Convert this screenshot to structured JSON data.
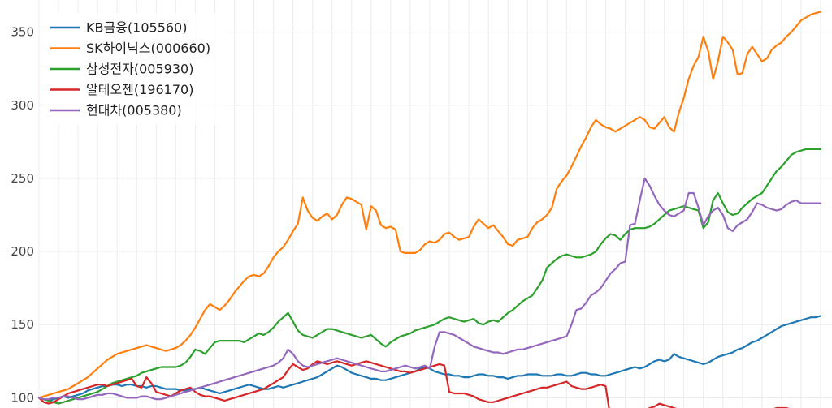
{
  "chart_data": {
    "type": "line",
    "title": "",
    "xlabel": "",
    "ylabel": "",
    "ylim": [
      93,
      372
    ],
    "yticks": [
      100,
      150,
      200,
      250,
      300,
      350
    ],
    "grid": true,
    "legend_position": "top-left",
    "x": [
      0,
      1,
      2,
      3,
      4,
      5,
      6,
      7,
      8,
      9,
      10,
      11,
      12,
      13,
      14,
      15,
      16,
      17,
      18,
      19,
      20,
      21,
      22,
      23,
      24,
      25,
      26,
      27,
      28,
      29,
      30,
      31,
      32,
      33,
      34,
      35,
      36,
      37,
      38,
      39,
      40,
      41,
      42,
      43,
      44,
      45,
      46,
      47,
      48,
      49,
      50,
      51,
      52,
      53,
      54,
      55,
      56,
      57,
      58,
      59,
      60,
      61,
      62,
      63,
      64,
      65,
      66,
      67,
      68,
      69,
      70,
      71,
      72,
      73,
      74,
      75,
      76,
      77,
      78,
      79,
      80,
      81,
      82,
      83,
      84,
      85,
      86,
      87,
      88,
      89,
      90,
      91,
      92,
      93,
      94,
      95,
      96,
      97,
      98,
      99,
      100,
      101,
      102,
      103,
      104,
      105,
      106,
      107,
      108,
      109,
      110,
      111,
      112,
      113,
      114,
      115,
      116,
      117,
      118,
      119,
      120,
      121,
      122,
      123,
      124,
      125,
      126,
      127,
      128,
      129,
      130,
      131,
      132,
      133,
      134,
      135,
      136,
      137,
      138,
      139,
      140,
      141,
      142,
      143,
      144,
      145,
      146,
      147,
      148,
      149,
      150,
      151,
      152,
      153,
      154,
      155,
      156,
      157,
      158,
      159,
      160
    ],
    "series": [
      {
        "name": "KB금융(105560)",
        "color": "#1f77b4",
        "values": [
          100,
          99,
          98,
          99,
          100,
          101,
          100,
          101,
          102,
          103,
          105,
          106,
          107,
          108,
          108,
          109,
          109,
          108,
          109,
          109,
          108,
          108,
          107,
          108,
          108,
          107,
          106,
          106,
          106,
          105,
          105,
          106,
          106,
          107,
          106,
          105,
          104,
          103,
          104,
          105,
          106,
          107,
          108,
          109,
          108,
          107,
          106,
          106,
          107,
          108,
          107,
          108,
          109,
          110,
          111,
          112,
          113,
          114,
          116,
          118,
          120,
          122,
          121,
          119,
          117,
          116,
          115,
          114,
          113,
          113,
          112,
          112,
          113,
          114,
          115,
          116,
          117,
          118,
          120,
          121,
          120,
          118,
          117,
          116,
          116,
          115,
          115,
          114,
          114,
          115,
          116,
          116,
          115,
          115,
          114,
          114,
          113,
          114,
          115,
          115,
          116,
          116,
          116,
          115,
          115,
          115,
          116,
          116,
          115,
          115,
          116,
          117,
          117,
          116,
          116,
          115,
          115,
          116,
          117,
          118,
          119,
          120,
          121,
          120,
          121,
          123,
          125,
          126,
          125,
          126,
          130,
          128,
          127,
          126,
          125,
          124,
          123,
          124,
          126,
          128,
          129,
          130,
          131,
          133,
          134,
          136,
          138,
          139,
          141,
          143,
          145,
          147,
          149,
          150,
          151,
          152,
          153,
          154,
          155,
          155,
          156
        ]
      },
      {
        "name": "SK하이닉스(000660)",
        "color": "#ff7f0e",
        "values": [
          100,
          101,
          102,
          103,
          104,
          105,
          106,
          108,
          110,
          112,
          114,
          117,
          120,
          123,
          126,
          128,
          130,
          131,
          132,
          133,
          134,
          135,
          136,
          135,
          134,
          133,
          132,
          133,
          134,
          136,
          139,
          143,
          148,
          154,
          160,
          164,
          162,
          160,
          163,
          167,
          172,
          176,
          180,
          183,
          184,
          183,
          185,
          190,
          196,
          200,
          203,
          208,
          214,
          219,
          237,
          228,
          223,
          221,
          224,
          226,
          222,
          225,
          232,
          237,
          236,
          234,
          232,
          215,
          231,
          228,
          218,
          216,
          217,
          215,
          200,
          199,
          199,
          199,
          201,
          205,
          207,
          206,
          208,
          212,
          213,
          210,
          208,
          209,
          210,
          217,
          222,
          219,
          216,
          218,
          214,
          210,
          205,
          204,
          208,
          209,
          210,
          216,
          220,
          222,
          225,
          230,
          243,
          248,
          252,
          258,
          265,
          272,
          278,
          285,
          290,
          287,
          285,
          284,
          282,
          284,
          286,
          288,
          290,
          292,
          290,
          285,
          284,
          288,
          292,
          285,
          282,
          295,
          305,
          318,
          327,
          333,
          347,
          337,
          318,
          330,
          347,
          343,
          338,
          321,
          322,
          335,
          340,
          335,
          330,
          332,
          338,
          341,
          343,
          347,
          350,
          354,
          358,
          360,
          362,
          363,
          364
        ]
      },
      {
        "name": "삼성전자(005930)",
        "color": "#2ca02c",
        "values": [
          100,
          99,
          98,
          97,
          96,
          97,
          98,
          99,
          100,
          101,
          102,
          103,
          104,
          106,
          108,
          110,
          111,
          112,
          113,
          114,
          115,
          117,
          118,
          119,
          120,
          121,
          121,
          121,
          121,
          122,
          124,
          128,
          133,
          132,
          130,
          134,
          138,
          139,
          139,
          139,
          139,
          139,
          138,
          140,
          142,
          144,
          143,
          145,
          148,
          152,
          155,
          158,
          152,
          146,
          143,
          142,
          141,
          143,
          145,
          147,
          147,
          146,
          145,
          144,
          143,
          142,
          141,
          142,
          143,
          140,
          137,
          135,
          138,
          140,
          142,
          143,
          144,
          146,
          147,
          148,
          149,
          150,
          152,
          154,
          155,
          154,
          153,
          152,
          153,
          154,
          151,
          150,
          152,
          153,
          152,
          155,
          158,
          160,
          163,
          166,
          168,
          170,
          175,
          180,
          189,
          192,
          195,
          197,
          198,
          197,
          196,
          196,
          197,
          198,
          200,
          205,
          209,
          212,
          211,
          208,
          212,
          215,
          216,
          216,
          216,
          217,
          219,
          222,
          225,
          228,
          229,
          230,
          231,
          230,
          229,
          228,
          216,
          220,
          235,
          240,
          233,
          227,
          225,
          226,
          230,
          233,
          236,
          238,
          240,
          245,
          250,
          255,
          258,
          262,
          266,
          268,
          269,
          270,
          270,
          270,
          270
        ]
      },
      {
        "name": "알테오젠(196170)",
        "color": "#d62728",
        "values": [
          100,
          97,
          96,
          97,
          99,
          101,
          103,
          104,
          105,
          106,
          107,
          108,
          109,
          109,
          108,
          109,
          110,
          111,
          112,
          113,
          108,
          107,
          114,
          110,
          104,
          103,
          102,
          101,
          103,
          105,
          106,
          107,
          104,
          102,
          101,
          101,
          100,
          99,
          98,
          99,
          100,
          101,
          102,
          103,
          104,
          105,
          106,
          108,
          110,
          112,
          114,
          119,
          123,
          121,
          119,
          120,
          123,
          125,
          124,
          123,
          124,
          125,
          124,
          123,
          122,
          123,
          124,
          125,
          124,
          123,
          122,
          121,
          120,
          119,
          118,
          118,
          117,
          118,
          119,
          120,
          121,
          122,
          123,
          122,
          104,
          103,
          103,
          103,
          102,
          101,
          99,
          98,
          97,
          97,
          98,
          99,
          100,
          101,
          102,
          103,
          104,
          105,
          106,
          107,
          107,
          108,
          109,
          110,
          111,
          108,
          107,
          106,
          106,
          107,
          108,
          109,
          108,
          86,
          85,
          84,
          84,
          85,
          87,
          89,
          91,
          93,
          94,
          96,
          95,
          94,
          93,
          92,
          91,
          90,
          89,
          88,
          88,
          87,
          86,
          85,
          84,
          85,
          86,
          87,
          88,
          89,
          90,
          91,
          92,
          92,
          92,
          93,
          93,
          93,
          92,
          92,
          92,
          92,
          92,
          92,
          91
        ]
      },
      {
        "name": "현대차(005380)",
        "color": "#9467bd",
        "values": [
          100,
          99,
          99,
          100,
          100,
          101,
          101,
          100,
          99,
          99,
          100,
          101,
          102,
          102,
          103,
          103,
          102,
          101,
          100,
          100,
          100,
          101,
          101,
          100,
          99,
          99,
          100,
          101,
          102,
          103,
          104,
          105,
          106,
          107,
          108,
          109,
          110,
          111,
          112,
          113,
          114,
          115,
          116,
          117,
          118,
          119,
          120,
          121,
          122,
          124,
          127,
          133,
          130,
          125,
          122,
          121,
          122,
          123,
          124,
          125,
          126,
          127,
          126,
          125,
          124,
          123,
          122,
          121,
          120,
          119,
          118,
          118,
          119,
          120,
          121,
          122,
          121,
          120,
          121,
          122,
          120,
          135,
          145,
          145,
          144,
          143,
          141,
          139,
          137,
          135,
          134,
          133,
          132,
          131,
          131,
          130,
          131,
          132,
          133,
          133,
          134,
          135,
          136,
          137,
          138,
          139,
          140,
          141,
          142,
          150,
          160,
          161,
          165,
          170,
          172,
          175,
          180,
          185,
          188,
          192,
          193,
          218,
          219,
          235,
          250,
          245,
          238,
          232,
          228,
          225,
          224,
          226,
          228,
          240,
          240,
          230,
          218,
          224,
          228,
          230,
          225,
          216,
          214,
          218,
          220,
          222,
          227,
          233,
          232,
          230,
          229,
          228,
          229,
          232,
          234,
          235,
          233,
          233,
          233,
          233,
          233
        ]
      }
    ]
  }
}
